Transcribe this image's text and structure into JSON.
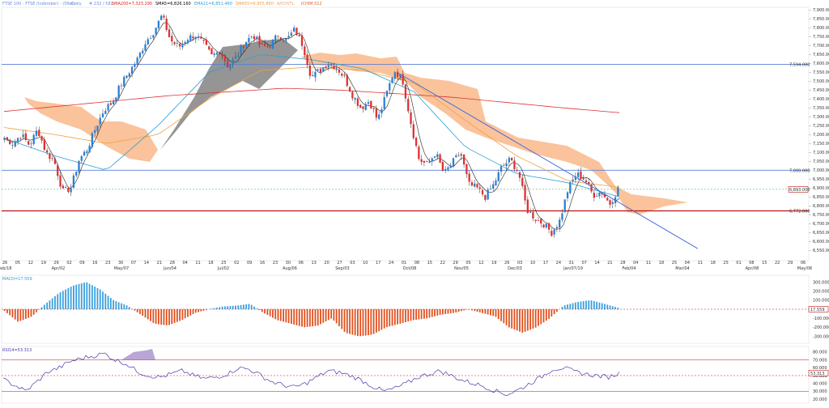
{
  "header": {
    "symbol": "FTSE 100 - FTSE (Icebroker) - (5Rel)",
    "interval": "Daily",
    "last": "# 232 / 582",
    "indicators": [
      {
        "text": "SMA200=7,323.290",
        "color": "#e02020"
      },
      {
        "text": "SMA5=6,826.160",
        "color": "#000000"
      },
      {
        "text": "EMA21=6,851.460",
        "color": "#2a9fd6"
      },
      {
        "text": "SMA55=6,905.860",
        "color": "#f0a040"
      },
      {
        "text": "A/ICH/TL",
        "color": "#f0a060"
      },
      {
        "text": "ICHIM.512",
        "color": "#e06030"
      }
    ]
  },
  "price_axis": [
    "7,900.000",
    "7,850.000",
    "7,800.000",
    "7,750.000",
    "7,700.000",
    "7,650.000",
    "7,600.000",
    "7,550.000",
    "7,500.000",
    "7,450.000",
    "7,400.000",
    "7,350.000",
    "7,300.000",
    "7,250.000",
    "7,200.000",
    "7,150.000",
    "7,100.000",
    "7,050.000",
    "7,000.000",
    "6,950.000",
    "6,900.000",
    "6,850.000",
    "6,800.000",
    "6,750.000",
    "6,700.000",
    "6,650.000",
    "6,600.000",
    "6,550.000"
  ],
  "levels": [
    {
      "label": "7,594.000",
      "value": 7594,
      "color": "#5b7fd6"
    },
    {
      "label": "7,000.000",
      "value": 7000,
      "color": "#5b7fd6"
    },
    {
      "label": "6,772.000",
      "value": 6772,
      "color": "#c01010"
    }
  ],
  "current_price": {
    "label": "6,893.000",
    "value": 6893
  },
  "date_ticks": [
    "26",
    "05",
    "12",
    "19",
    "26",
    "02",
    "09",
    "16",
    "23",
    "30",
    "07",
    "14",
    "21",
    "28",
    "04",
    "11",
    "18",
    "25",
    "02",
    "09",
    "16",
    "23",
    "30",
    "06",
    "13",
    "20",
    "27",
    "03",
    "10",
    "17",
    "24",
    "01",
    "08",
    "15",
    "22",
    "29",
    "05",
    "12",
    "19",
    "26",
    "03",
    "10",
    "17",
    "24",
    "31",
    "07",
    "14",
    "21",
    "28",
    "04",
    "11",
    "18",
    "25",
    "04",
    "11",
    "18",
    "25",
    "01",
    "08",
    "15",
    "22",
    "29",
    "06"
  ],
  "month_labels": [
    "Feb/18",
    "Apr/02",
    "May/07",
    "Jun/04",
    "Jul/02",
    "Aug/06",
    "Sep/03",
    "Oct/08",
    "Nov/05",
    "Dec/03",
    "Jan/07/19",
    "Feb/04",
    "Mar/04",
    "Apr/08",
    "May/06"
  ],
  "macd": {
    "title": "MACD=17.559",
    "axis": [
      "300.000",
      "200.000",
      "100.000",
      "0.000",
      "-100.000",
      "-200.000",
      "-300.000"
    ],
    "last_label": "17.559",
    "pos_color": "#3aa0dc",
    "neg_color": "#e0501e"
  },
  "rsi": {
    "title": "RSI14=53.313",
    "axis": [
      "80.000",
      "70.000",
      "60.000",
      "50.000",
      "40.000",
      "30.000",
      "20.000"
    ],
    "last_label": "53.313",
    "line_color": "#4a3aa8"
  },
  "chart_data": {
    "type": "candlestick",
    "title": "FTSE 100 Daily",
    "ylim": [
      6520,
      7910
    ],
    "x_start": "2018-02-26",
    "x_end": "2019-05-06",
    "price_path": [
      7180,
      7150,
      7200,
      7140,
      7230,
      7100,
      7050,
      6880,
      6900,
      7060,
      7120,
      7240,
      7340,
      7380,
      7480,
      7550,
      7620,
      7720,
      7780,
      7870,
      7730,
      7690,
      7740,
      7760,
      7710,
      7640,
      7670,
      7580,
      7640,
      7720,
      7760,
      7690,
      7700,
      7760,
      7730,
      7790,
      7700,
      7520,
      7560,
      7600,
      7580,
      7520,
      7420,
      7350,
      7390,
      7280,
      7420,
      7560,
      7510,
      7270,
      7060,
      7030,
      7100,
      6980,
      7040,
      7100,
      6920,
      6900,
      6850,
      6920,
      7020,
      7060,
      6990,
      6780,
      6730,
      6700,
      6650,
      6720,
      6900,
      6980,
      6950,
      6860,
      6880,
      6810,
      6893
    ],
    "sma200": [
      7330,
      7360,
      7390,
      7420,
      7440,
      7460,
      7450,
      7430,
      7410,
      7380,
      7350,
      7323
    ],
    "ema21": [
      7180,
      7080,
      7000,
      7250,
      7550,
      7650,
      7620,
      7570,
      7440,
      7130,
      6980,
      6930,
      6851
    ],
    "sma55": [
      7240,
      7200,
      7150,
      7200,
      7400,
      7560,
      7580,
      7560,
      7490,
      7280,
      7080,
      6940,
      6905
    ],
    "ichimoku_cloud_orange": true,
    "ichimoku_cloud_grey": true,
    "trendline": {
      "from": [
        "2018-10-03",
        7545
      ],
      "to": [
        "2019-03-11",
        6560
      ]
    },
    "macd_hist_path": [
      -20,
      -140,
      -80,
      60,
      180,
      260,
      300,
      220,
      100,
      40,
      -60,
      -160,
      -180,
      -120,
      -40,
      0,
      30,
      40,
      60,
      -40,
      -120,
      -160,
      -200,
      -180,
      -100,
      -260,
      -300,
      -280,
      -200,
      -160,
      -120,
      -100,
      -60,
      -40,
      0,
      -40,
      -80,
      -200,
      -260,
      -200,
      -100,
      40,
      80,
      100,
      60,
      17
    ],
    "rsi_path": [
      45,
      38,
      30,
      42,
      55,
      60,
      68,
      72,
      75,
      78,
      70,
      65,
      55,
      50,
      48,
      52,
      56,
      50,
      46,
      48,
      52,
      60,
      58,
      50,
      42,
      38,
      35,
      40,
      48,
      56,
      54,
      50,
      44,
      36,
      30,
      34,
      40,
      48,
      52,
      56,
      50,
      44,
      40,
      36,
      30,
      26,
      32,
      40,
      48,
      58,
      60,
      55,
      52,
      50,
      48,
      53
    ]
  }
}
